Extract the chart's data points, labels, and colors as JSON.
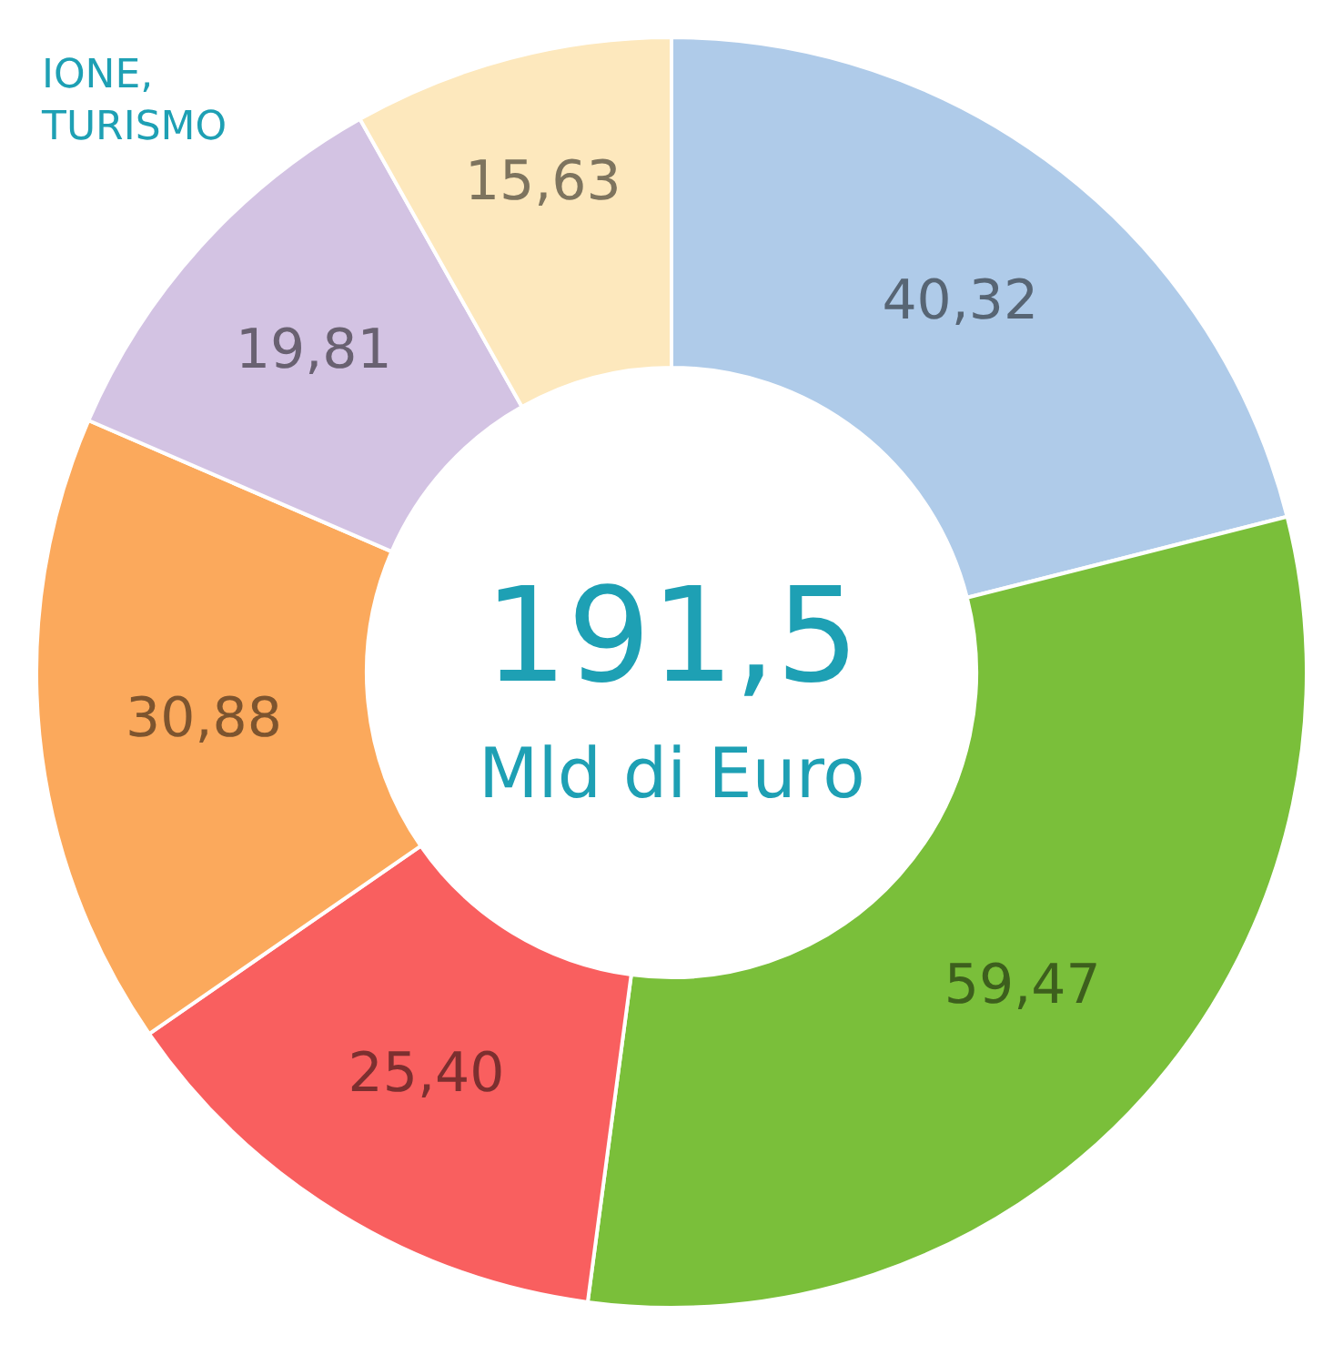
{
  "chart_data": {
    "type": "donut",
    "categories": [
      null,
      null,
      null,
      null,
      null,
      null
    ],
    "values": [
      40.32,
      59.47,
      25.4,
      30.88,
      19.81,
      15.63
    ],
    "value_labels": [
      "40,32",
      "59,47",
      "25,40",
      "30,88",
      "19,81",
      "15,63"
    ],
    "colors": [
      "#afcbe9",
      "#7abf3a",
      "#f95f5f",
      "#fba95c",
      "#d3c3e3",
      "#fde8bd"
    ],
    "annotations": [
      "191,5",
      "Mld di Euro",
      "IONE,\nTURISMO"
    ],
    "legend": false
  }
}
